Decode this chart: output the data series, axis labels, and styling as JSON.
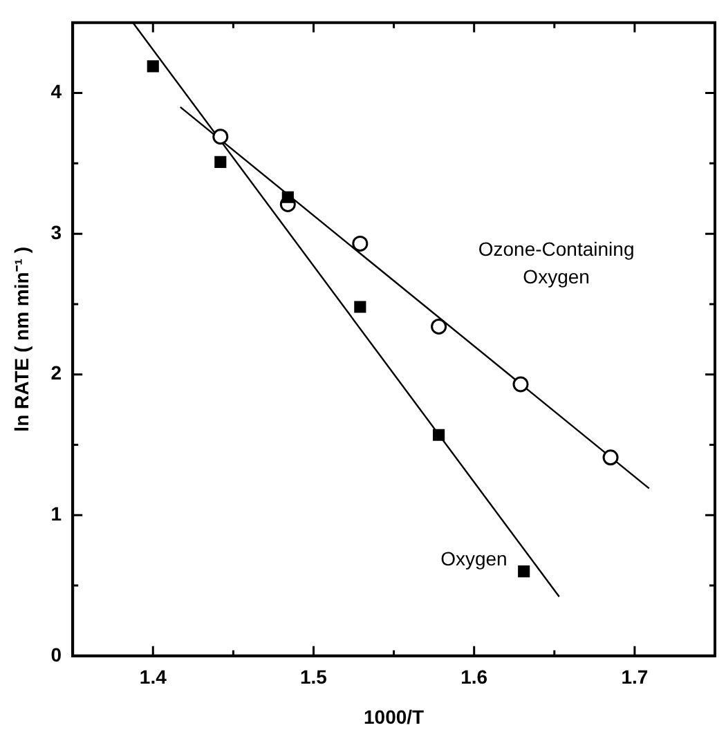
{
  "chart_data": {
    "type": "scatter",
    "xlabel": "1000/T",
    "ylabel": "ln RATE ( nm min⁻¹ )",
    "xlim": [
      1.35,
      1.75
    ],
    "xticks": [
      {
        "value": 1.35,
        "label": null
      },
      1.4,
      {
        "value": 1.45,
        "label": null
      },
      1.5,
      {
        "value": 1.55,
        "label": null
      },
      1.6,
      {
        "value": 1.65,
        "label": null
      },
      1.7,
      {
        "value": 1.75,
        "label": null
      }
    ],
    "ylim": [
      0,
      4.5
    ],
    "yticks": [
      0,
      {
        "value": 0.5,
        "label": null
      },
      1,
      {
        "value": 1.5,
        "label": null
      },
      2,
      {
        "value": 2.5,
        "label": null
      },
      3,
      {
        "value": 3.5,
        "label": null
      },
      4,
      {
        "value": 4.5,
        "label": null
      }
    ],
    "grid": false,
    "legend": false,
    "series": [
      {
        "name": "Oxygen",
        "type": "scatter",
        "marker": "square",
        "color": "#000000",
        "x": [
          1.4,
          1.442,
          1.484,
          1.529,
          1.578,
          1.631
        ],
        "values": [
          4.19,
          3.51,
          3.26,
          2.48,
          1.57,
          0.6
        ]
      },
      {
        "name": "Ozone-Containing Oxygen",
        "type": "scatter",
        "marker": "circle",
        "color": "#000000",
        "x": [
          1.442,
          1.484,
          1.529,
          1.578,
          1.629,
          1.685
        ],
        "values": [
          3.69,
          3.21,
          2.93,
          2.34,
          1.93,
          1.41
        ]
      },
      {
        "type": "line",
        "marker": "none",
        "color": "#000000",
        "x": [
          1.3875,
          1.653
        ],
        "values": [
          4.5,
          0.42
        ]
      },
      {
        "type": "line",
        "marker": "none",
        "color": "#000000",
        "x": [
          1.417,
          1.709
        ],
        "values": [
          3.9,
          1.19
        ]
      }
    ]
  }
}
